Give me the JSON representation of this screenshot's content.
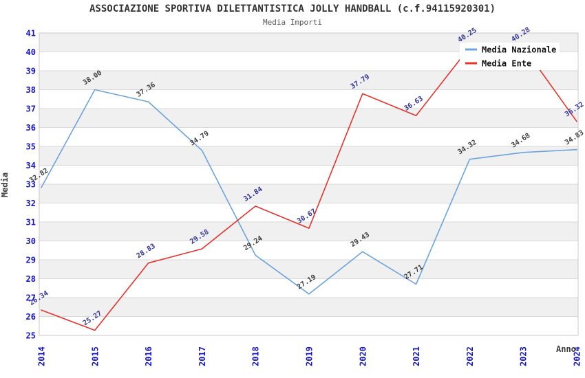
{
  "title": "ASSOCIAZIONE SPORTIVA DILETTANTISTICA JOLLY HANDBALL (c.f.94115920301)",
  "subtitle": "Media Importi",
  "colors": {
    "background": "#ffffff",
    "band_gray": "#f0f0f0",
    "gridline": "#d9d9d9",
    "plot_border": "#c8c8c8",
    "axis_tick_blue": "#1414cc",
    "title_text": "#333333",
    "subtitle_text": "#555555",
    "axis_label_text": "#3c3c3c",
    "legend_text": "#111111",
    "legend_background": "#ffffff",
    "series_nazionale_line": "#6ba3dc",
    "series_nazionale_label": "#3c3c3c",
    "series_ente_line": "#e8322a",
    "series_ente_label": "#32329b"
  },
  "chart_data": {
    "type": "line",
    "x": [
      2014,
      2015,
      2016,
      2017,
      2018,
      2019,
      2020,
      2021,
      2022,
      2023,
      2024
    ],
    "xlabel": "Anno",
    "ylabel": "Media",
    "ylim": [
      25,
      41
    ],
    "y_tick_step": 1,
    "grid": "horizontal-only, alternating gray bands on even intervals",
    "legend_position": "top-right",
    "series": [
      {
        "name": "Media Nazionale",
        "color": "#6ba3dc",
        "label_color": "#3c3c3c",
        "values": [
          32.82,
          38.0,
          37.36,
          34.79,
          29.24,
          27.19,
          29.43,
          27.71,
          34.32,
          34.68,
          34.83
        ]
      },
      {
        "name": "Media Ente",
        "color": "#e8322a",
        "label_color": "#32329b",
        "values": [
          26.34,
          25.27,
          28.83,
          29.58,
          31.84,
          30.67,
          37.79,
          36.63,
          40.25,
          40.28,
          36.32
        ]
      }
    ]
  }
}
